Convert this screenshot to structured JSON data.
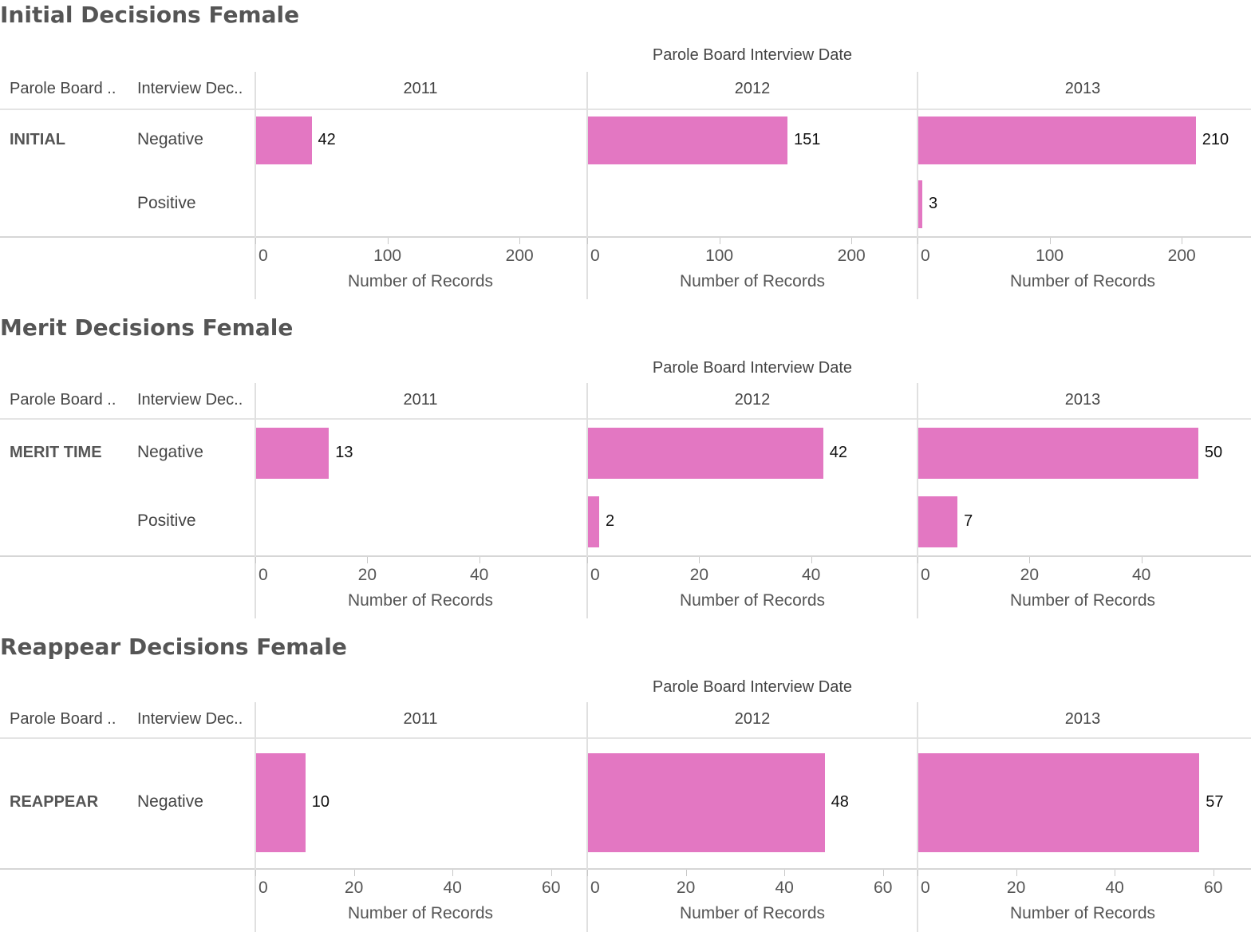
{
  "column_dimension_label": "Parole Board Interview Date",
  "header_labels": {
    "board": "Parole Board ..",
    "decision": "Interview Dec.."
  },
  "years": [
    "2011",
    "2012",
    "2013"
  ],
  "axis_title": "Number of Records",
  "colors": {
    "bar": "#e377c2",
    "gridline": "#e4e4e4",
    "title": "#555555"
  },
  "chart_data": [
    {
      "type": "bar",
      "orientation": "horizontal",
      "title": "Initial Decisions Female",
      "group": "INITIAL",
      "facets": [
        "2011",
        "2012",
        "2013"
      ],
      "categories": [
        "Negative",
        "Positive"
      ],
      "xlim": [
        0,
        250
      ],
      "xticks": [
        0,
        100,
        200
      ],
      "values": {
        "2011": [
          42,
          null
        ],
        "2012": [
          151,
          null
        ],
        "2013": [
          210,
          3
        ]
      }
    },
    {
      "type": "bar",
      "orientation": "horizontal",
      "title": "Merit Decisions Female",
      "group": "MERIT TIME",
      "facets": [
        "2011",
        "2012",
        "2013"
      ],
      "categories": [
        "Negative",
        "Positive"
      ],
      "xlim": [
        0,
        59
      ],
      "xticks": [
        0,
        20,
        40
      ],
      "values": {
        "2011": [
          13,
          null
        ],
        "2012": [
          42,
          2
        ],
        "2013": [
          50,
          7
        ]
      }
    },
    {
      "type": "bar",
      "orientation": "horizontal",
      "title": "Reappear Decisions Female",
      "group": "REAPPEAR",
      "facets": [
        "2011",
        "2012",
        "2013"
      ],
      "categories": [
        "Negative"
      ],
      "xlim": [
        0,
        67
      ],
      "xticks": [
        0,
        20,
        40,
        60
      ],
      "values": {
        "2011": [
          10
        ],
        "2012": [
          48
        ],
        "2013": [
          57
        ]
      }
    }
  ]
}
